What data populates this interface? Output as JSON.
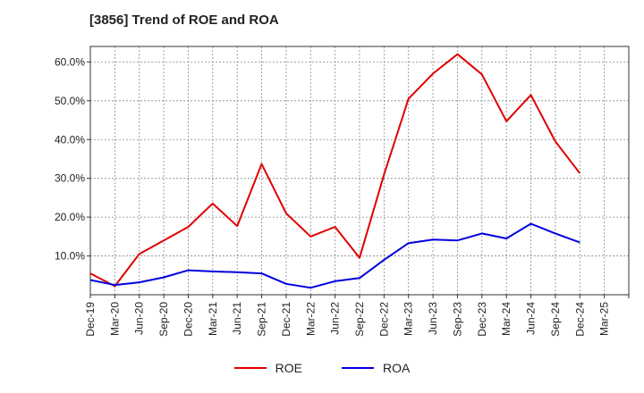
{
  "title": "[3856]  Trend of ROE and ROA",
  "chart_data": {
    "type": "line",
    "title": "[3856]  Trend of ROE and ROA",
    "xlabel": "",
    "ylabel": "",
    "x_ticks": [
      "Dec-19",
      "Mar-20",
      "Jun-20",
      "Sep-20",
      "Dec-20",
      "Mar-21",
      "Jun-21",
      "Sep-21",
      "Dec-21",
      "Mar-22",
      "Jun-22",
      "Sep-22",
      "Dec-22",
      "Mar-23",
      "Jun-23",
      "Sep-23",
      "Dec-23",
      "Mar-24",
      "Jun-24",
      "Sep-24",
      "Dec-24",
      "Mar-25"
    ],
    "y_ticks": [
      "10.0%",
      "20.0%",
      "30.0%",
      "40.0%",
      "50.0%",
      "60.0%"
    ],
    "ylim": [
      0,
      64
    ],
    "grid": true,
    "legend_position": "bottom",
    "series": [
      {
        "name": "ROE",
        "color": "#e00000",
        "points": [
          [
            "Dec-19",
            5.5
          ],
          [
            "Mar-20",
            2.2
          ],
          [
            "Jun-20",
            10.5
          ],
          [
            "Sep-20",
            14
          ],
          [
            "Dec-20",
            17.5
          ],
          [
            "Mar-21",
            23.5
          ],
          [
            "Jun-21",
            17.7
          ],
          [
            "Sep-21",
            33.7
          ],
          [
            "Dec-21",
            21
          ],
          [
            "Mar-22",
            15
          ],
          [
            "Jun-22",
            17.5
          ],
          [
            "Sep-22",
            9.5
          ],
          [
            "Dec-22",
            31
          ],
          [
            "Mar-23",
            50.5
          ],
          [
            "Jun-23",
            57
          ],
          [
            "Sep-23",
            62
          ],
          [
            "Dec-23",
            56.8
          ],
          [
            "Mar-24",
            44.7
          ],
          [
            "Jun-24",
            51.5
          ],
          [
            "Sep-24",
            39.5
          ],
          [
            "Dec-24",
            31.3
          ]
        ]
      },
      {
        "name": "ROA",
        "color": "#0000e0",
        "points": [
          [
            "Dec-19",
            3.8
          ],
          [
            "Mar-20",
            2.5
          ],
          [
            "Jun-20",
            3.2
          ],
          [
            "Sep-20",
            4.5
          ],
          [
            "Dec-20",
            6.3
          ],
          [
            "Mar-21",
            6
          ],
          [
            "Jun-21",
            5.8
          ],
          [
            "Sep-21",
            5.5
          ],
          [
            "Dec-21",
            2.8
          ],
          [
            "Mar-22",
            1.8
          ],
          [
            "Jun-22",
            3.5
          ],
          [
            "Sep-22",
            4.3
          ],
          [
            "Dec-22",
            9
          ],
          [
            "Mar-23",
            13.3
          ],
          [
            "Jun-23",
            14.2
          ],
          [
            "Sep-23",
            14
          ],
          [
            "Dec-23",
            15.8
          ],
          [
            "Mar-24",
            14.5
          ],
          [
            "Jun-24",
            18.3
          ],
          [
            "Sep-24",
            15.8
          ],
          [
            "Dec-24",
            13.5
          ]
        ]
      }
    ]
  }
}
